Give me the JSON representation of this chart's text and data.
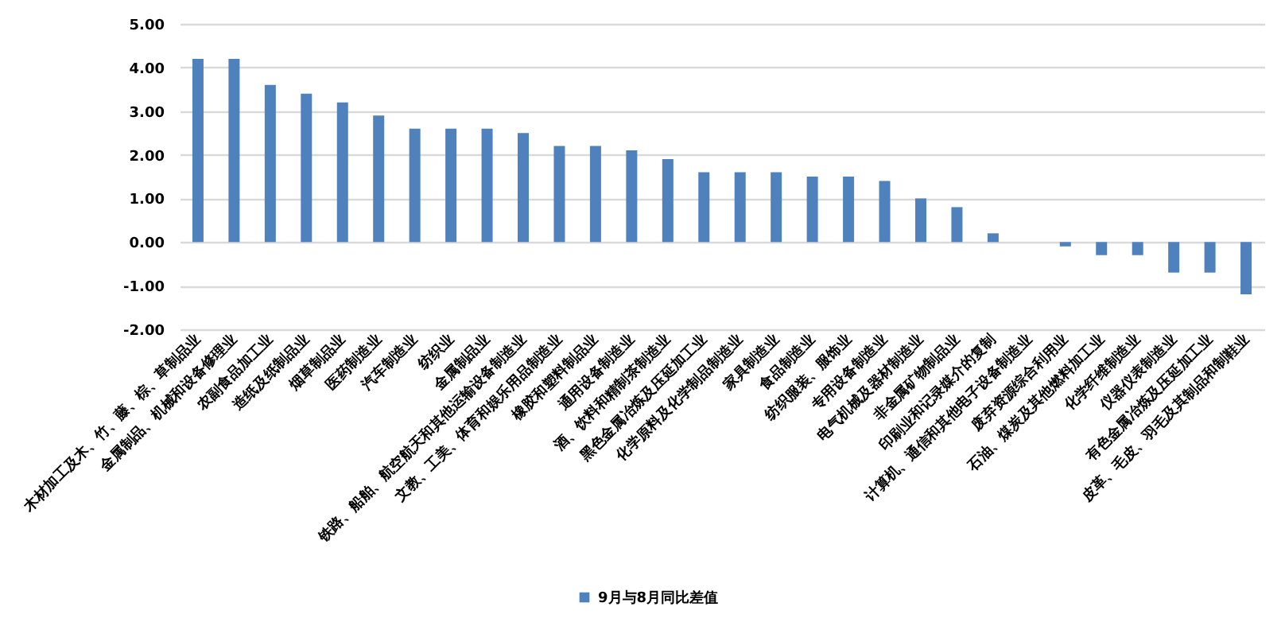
{
  "chart_data": {
    "type": "bar",
    "categories": [
      "木材加工及木、竹、藤、棕、草制品业",
      "金属制品、机械和设备修理业",
      "农副食品加工业",
      "造纸及纸制品业",
      "烟草制品业",
      "医药制造业",
      "汽车制造业",
      "纺织业",
      "金属制品业",
      "铁路、船舶、航空航天和其他运输设备制造业",
      "文教、工美、体育和娱乐用品制造业",
      "橡胶和塑料制品业",
      "通用设备制造业",
      "酒、饮料和精制茶制造业",
      "黑色金属冶炼及压延加工业",
      "化学原料及化学制品制造业",
      "家具制造业",
      "食品制造业",
      "纺织服装、服饰业",
      "专用设备制造业",
      "电气机械及器材制造业",
      "非金属矿物制品业",
      "印刷业和记录媒介的复制",
      "计算机、通信和其他电子设备制造业",
      "废弃资源综合利用业",
      "石油、煤炭及其他燃料加工业",
      "化学纤维制造业",
      "仪器仪表制造业",
      "有色金属冶炼及压延加工业",
      "皮革、毛皮、羽毛及其制品和制鞋业"
    ],
    "series": [
      {
        "name": "9月与8月同比差值",
        "color": "#4f81bd",
        "values": [
          4.2,
          4.2,
          3.6,
          3.4,
          3.2,
          2.9,
          2.6,
          2.6,
          2.6,
          2.5,
          2.2,
          2.2,
          2.1,
          1.9,
          1.6,
          1.6,
          1.6,
          1.5,
          1.5,
          1.4,
          1.0,
          0.8,
          0.2,
          0,
          -0.1,
          -0.3,
          -0.3,
          -0.7,
          -0.7,
          -1.2
        ]
      }
    ],
    "ylim": [
      -2,
      5
    ],
    "yticks": [
      {
        "value": -2,
        "label": "-2.00"
      },
      {
        "value": -1,
        "label": "-1.00"
      },
      {
        "value": 0,
        "label": "0.00"
      },
      {
        "value": 1,
        "label": "1.00"
      },
      {
        "value": 2,
        "label": "2.00"
      },
      {
        "value": 3,
        "label": "3.00"
      },
      {
        "value": 4,
        "label": "4.00"
      },
      {
        "value": 5,
        "label": "5.00"
      }
    ],
    "grid": "y",
    "legend": "bottom"
  }
}
